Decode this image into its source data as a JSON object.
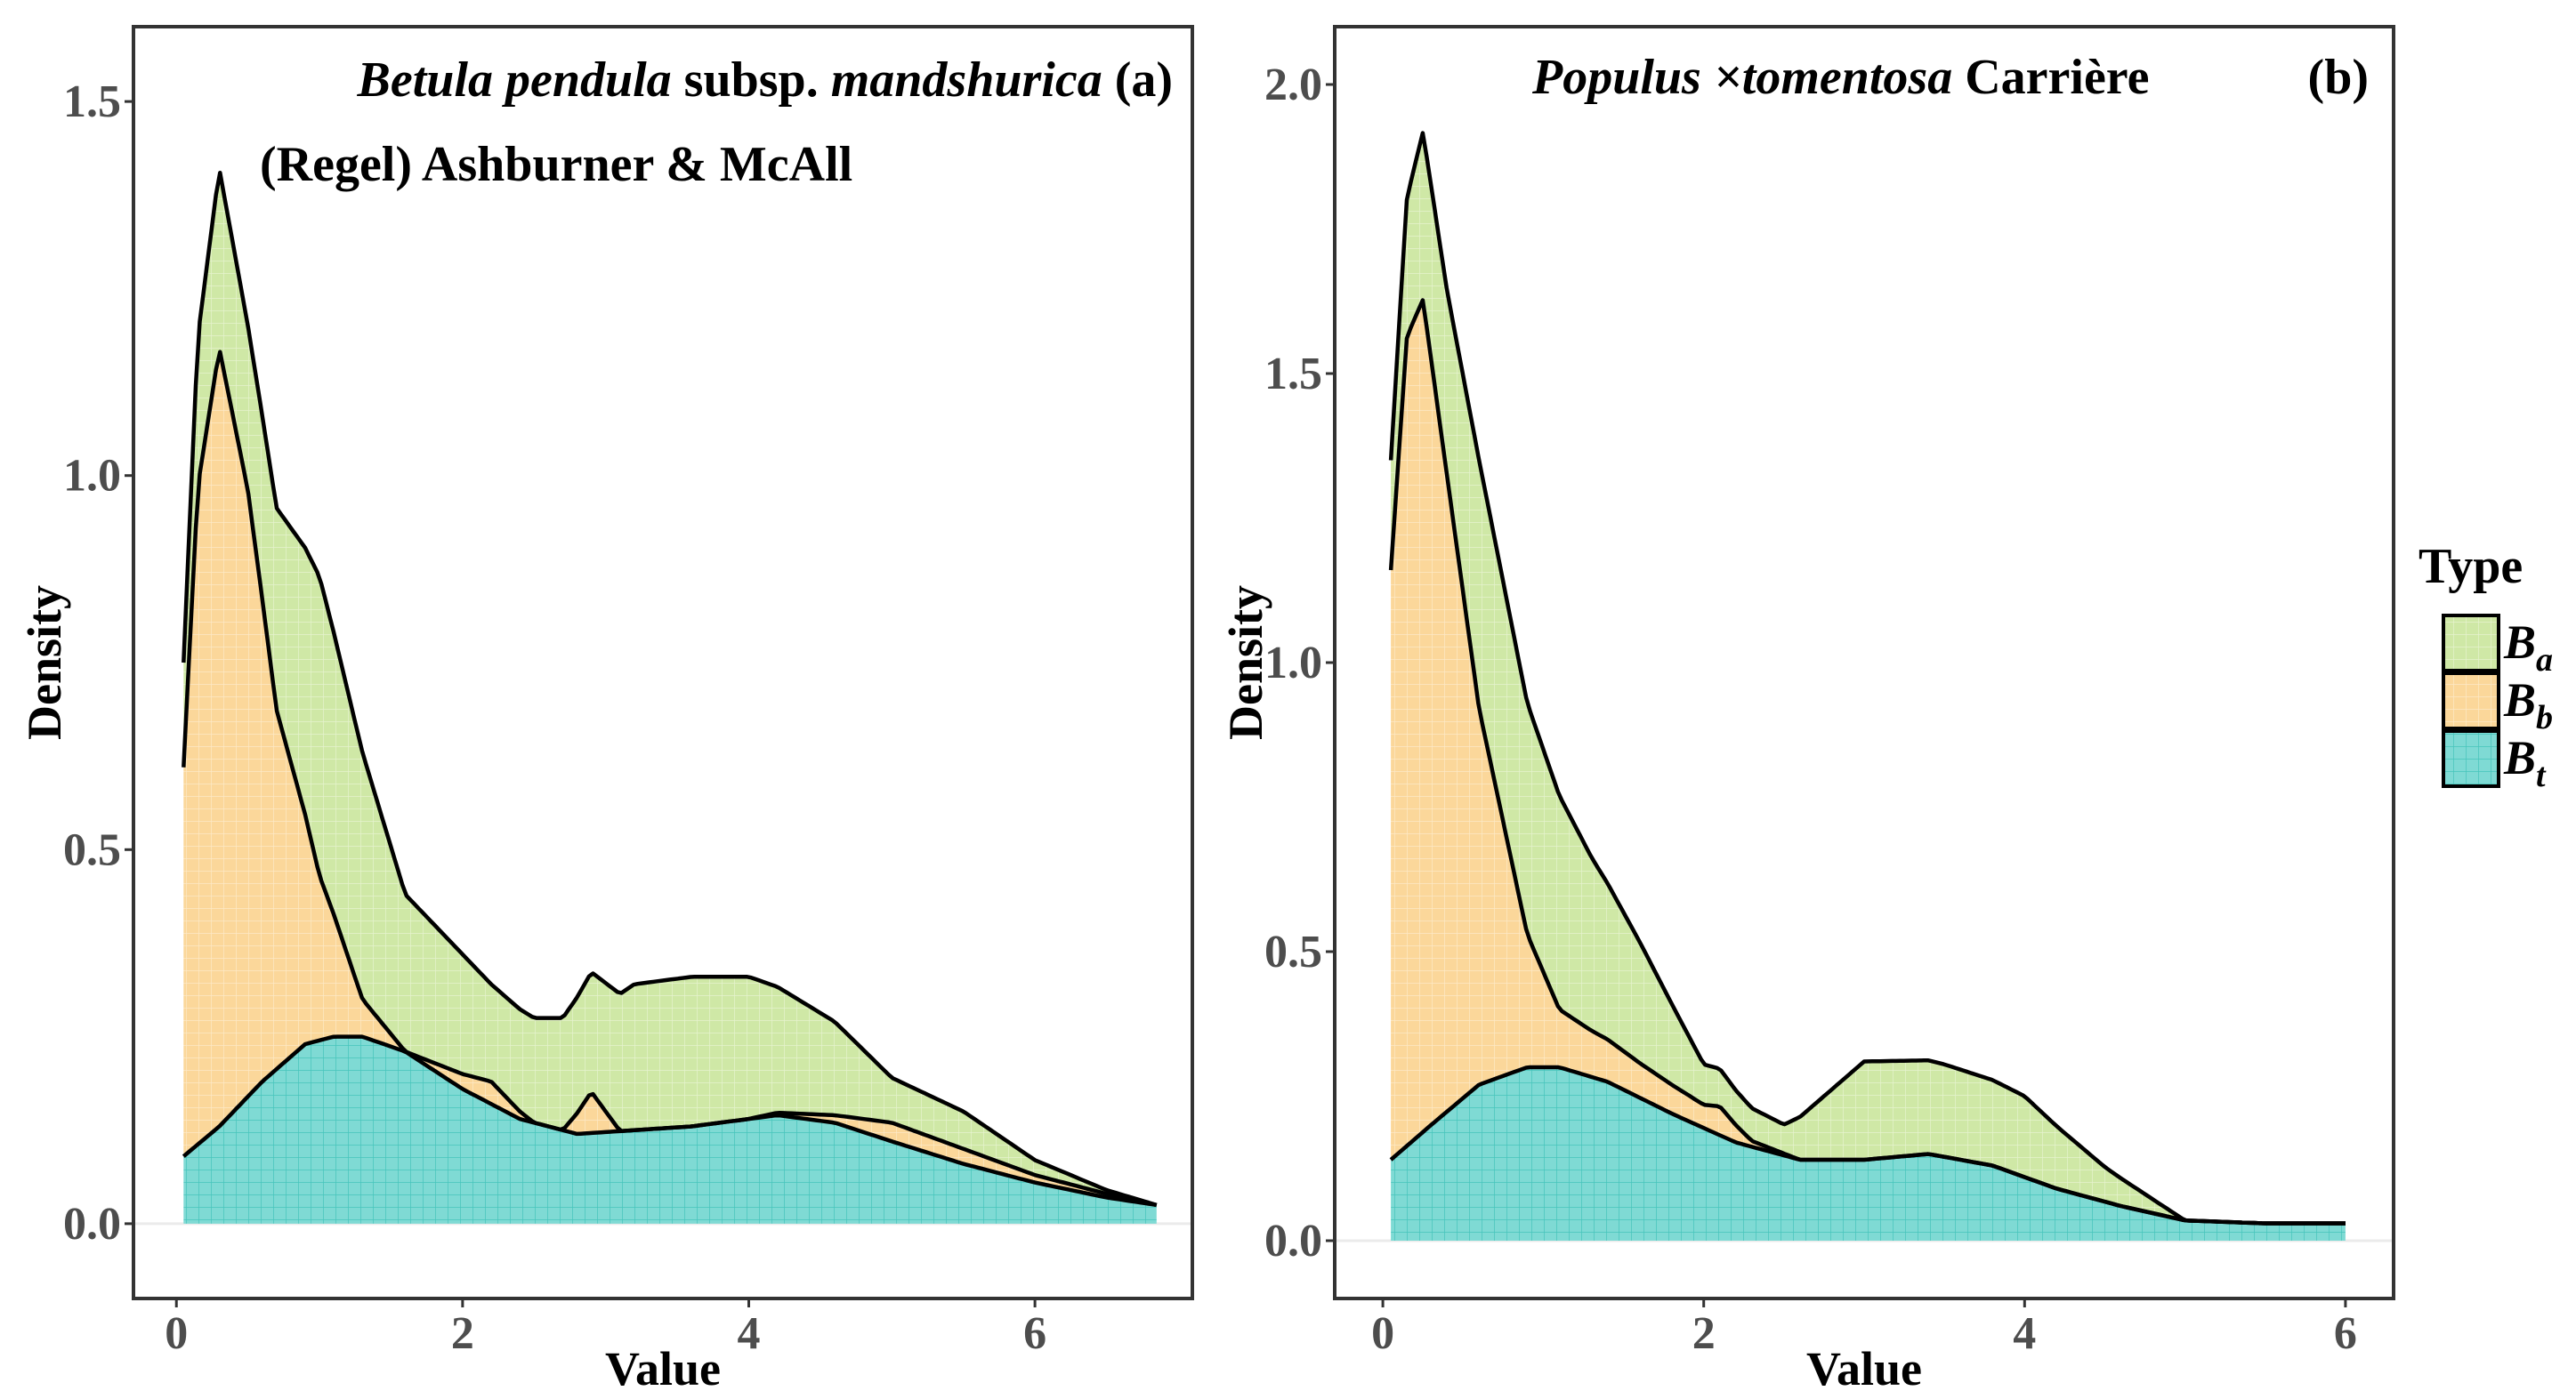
{
  "chart_data": [
    {
      "type": "area",
      "panel": "(a)",
      "title_line1": [
        "Betula pendula",
        " subsp. ",
        "mandshurica",
        " (a)"
      ],
      "title_line2": "(Regel) Ashburner & McAll",
      "xlabel": "Value",
      "ylabel": "Density",
      "xlim": [
        -0.3,
        7.1
      ],
      "ylim": [
        -0.1,
        1.6
      ],
      "xticks": [
        0,
        2,
        4,
        6
      ],
      "xtick_labels": [
        "0",
        "2",
        "4",
        "6"
      ],
      "yticks": [
        0.0,
        0.5,
        1.0,
        1.5
      ],
      "ytick_labels": [
        "0.0",
        "0.5",
        "1.0",
        "1.5"
      ],
      "stacking": "stacked (Bt bottom, Bb middle, Ba top)",
      "series": [
        {
          "name": "Bt",
          "x": [
            0.05,
            0.3,
            0.6,
            0.9,
            1.1,
            1.3,
            1.6,
            2.0,
            2.4,
            2.8,
            3.2,
            3.6,
            4.0,
            4.2,
            4.6,
            5.0,
            5.5,
            6.0,
            6.5,
            6.85
          ],
          "y": [
            0.09,
            0.13,
            0.19,
            0.24,
            0.25,
            0.25,
            0.23,
            0.18,
            0.14,
            0.12,
            0.125,
            0.13,
            0.14,
            0.145,
            0.135,
            0.11,
            0.08,
            0.055,
            0.035,
            0.025
          ]
        },
        {
          "name": "Bb",
          "x": [
            0.05,
            0.15,
            0.3,
            0.5,
            0.7,
            1.0,
            1.3,
            1.6,
            2.0,
            2.2,
            2.5,
            2.7,
            2.9,
            3.1,
            3.5,
            4.0,
            4.6,
            5.0,
            5.5,
            6.0,
            6.5,
            6.85
          ],
          "y": [
            0.52,
            0.88,
            1.04,
            0.81,
            0.48,
            0.22,
            0.05,
            0.0,
            0.02,
            0.03,
            0.0,
            0.0,
            0.055,
            0.0,
            0.0,
            0.0,
            0.01,
            0.025,
            0.02,
            0.01,
            0.005,
            0.0
          ]
        },
        {
          "name": "Ba",
          "x": [
            0.05,
            0.15,
            0.3,
            0.5,
            0.7,
            1.0,
            1.3,
            1.6,
            2.0,
            2.2,
            2.5,
            2.9,
            3.2,
            3.6,
            4.0,
            4.6,
            5.0,
            5.5,
            6.0,
            6.5,
            6.85
          ],
          "y": [
            0.14,
            0.2,
            0.24,
            0.22,
            0.27,
            0.4,
            0.33,
            0.21,
            0.16,
            0.13,
            0.14,
            0.16,
            0.195,
            0.2,
            0.19,
            0.125,
            0.06,
            0.05,
            0.02,
            0.005,
            0.0
          ]
        }
      ]
    },
    {
      "type": "area",
      "panel": "(b)",
      "title_line1": [
        "Populus ×tomentosa",
        " Carrière",
        "(b)"
      ],
      "xlabel": "Value",
      "ylabel": "Density",
      "xlim": [
        -0.3,
        6.3
      ],
      "ylim": [
        -0.1,
        2.1
      ],
      "xticks": [
        0,
        2,
        4,
        6
      ],
      "xtick_labels": [
        "0",
        "2",
        "4",
        "6"
      ],
      "yticks": [
        0.0,
        0.5,
        1.0,
        1.5,
        2.0
      ],
      "ytick_labels": [
        "0.0",
        "0.5",
        "1.0",
        "1.5",
        "2.0"
      ],
      "stacking": "stacked (Bt bottom, Bb middle, Ba top)",
      "series": [
        {
          "name": "Bt",
          "x": [
            0.05,
            0.3,
            0.6,
            0.9,
            1.1,
            1.4,
            1.8,
            2.2,
            2.6,
            3.0,
            3.4,
            3.8,
            4.2,
            4.6,
            5.0,
            5.5,
            6.0
          ],
          "y": [
            0.14,
            0.2,
            0.27,
            0.3,
            0.3,
            0.275,
            0.22,
            0.17,
            0.14,
            0.14,
            0.15,
            0.13,
            0.09,
            0.06,
            0.035,
            0.03,
            0.03
          ]
        },
        {
          "name": "Bb",
          "x": [
            0.05,
            0.15,
            0.25,
            0.4,
            0.6,
            0.9,
            1.1,
            1.3,
            1.6,
            2.0,
            2.1,
            2.3,
            2.6,
            3.0,
            3.5,
            4.0,
            4.5,
            5.0,
            6.0
          ],
          "y": [
            1.02,
            1.4,
            1.44,
            1.1,
            0.65,
            0.23,
            0.1,
            0.08,
            0.06,
            0.04,
            0.05,
            0.01,
            0.0,
            0.0,
            0.0,
            0.0,
            0.0,
            0.0,
            0.0
          ]
        },
        {
          "name": "Ba",
          "x": [
            0.05,
            0.15,
            0.25,
            0.4,
            0.6,
            0.9,
            1.1,
            1.3,
            1.6,
            2.0,
            2.2,
            2.5,
            3.0,
            3.5,
            4.0,
            4.5,
            5.0,
            5.5,
            6.0
          ],
          "y": [
            0.19,
            0.24,
            0.29,
            0.32,
            0.43,
            0.4,
            0.37,
            0.3,
            0.21,
            0.07,
            0.06,
            0.05,
            0.17,
            0.16,
            0.14,
            0.06,
            0.0,
            0.0,
            0.0
          ]
        }
      ]
    }
  ],
  "legend": {
    "title": "Type",
    "items": [
      {
        "label": "B",
        "sub": "a",
        "color": "#cfe8a6"
      },
      {
        "label": "B",
        "sub": "b",
        "color": "#fbd79a"
      },
      {
        "label": "B",
        "sub": "t",
        "color": "#7fdad4"
      }
    ]
  },
  "colors": {
    "Ba": "#cfe8a6",
    "Bb": "#fbd79a",
    "Bt": "#7fdad4",
    "Ba_grid": "#e3f2c8",
    "Bb_grid": "#fde8c4",
    "Bt_grid": "#3fc6bd",
    "line": "#000000",
    "frame": "#333333"
  }
}
